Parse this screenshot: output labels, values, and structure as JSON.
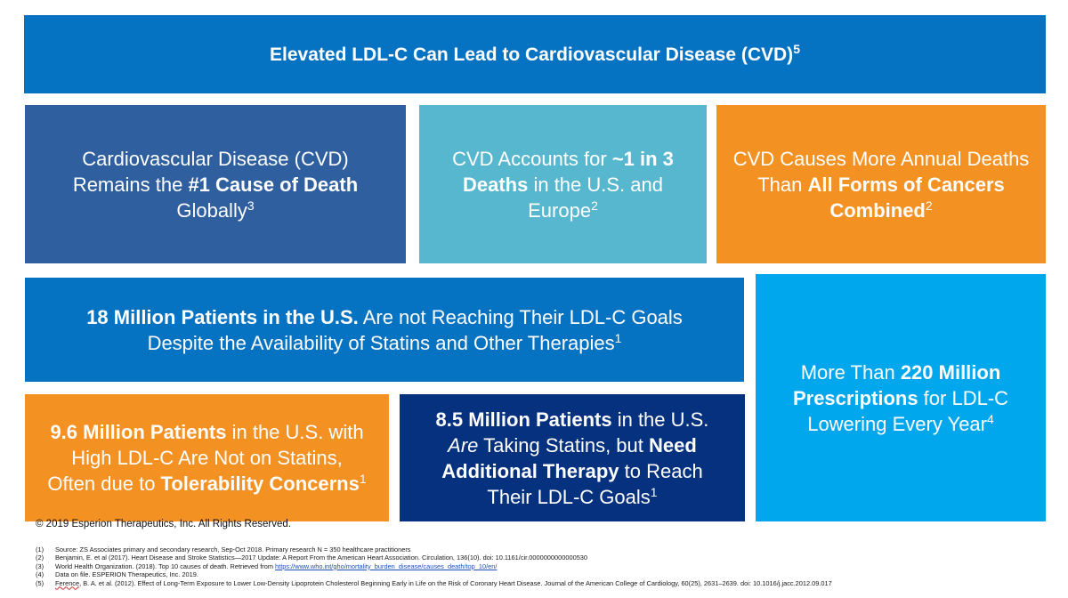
{
  "title": {
    "main": "Elevated LDL-C Can Lead to Cardiovascular Disease (CVD)",
    "sup": "5"
  },
  "boxes": {
    "cvd_global": {
      "line1": "Cardiovascular Disease (CVD)",
      "line2_pre": "Remains the ",
      "line2_bold": "#1 Cause of Death",
      "line3": "Globally",
      "sup": "3"
    },
    "cvd_1in3": {
      "line1_pre": "CVD Accounts for ",
      "line1_bold": "~1 in 3",
      "line2_bold": "Deaths",
      "line2_post": " in the U.S. and",
      "line3": "Europe",
      "sup": "2"
    },
    "cvd_cancers": {
      "line1": "CVD Causes More Annual Deaths",
      "line2_pre": "Than ",
      "line2_bold": "All Forms of Cancers",
      "line3_bold": "Combined",
      "sup": "2"
    },
    "patients_18m": {
      "line1_bold": "18 Million Patients in the U.S.",
      "line1_post": " Are not Reaching Their LDL-C Goals",
      "line2": "Despite the Availability of Statins and Other Therapies",
      "sup": "1"
    },
    "prescriptions_220m": {
      "line1_pre": "More Than ",
      "line1_bold": "220 Million",
      "line2_bold": "Prescriptions",
      "line2_post": " for LDL-C",
      "line3": "Lowering Every Year",
      "sup": "4"
    },
    "patients_9_6m": {
      "line1_bold": "9.6 Million Patients",
      "line1_post": " in the U.S. with",
      "line2": "High LDL-C Are Not on Statins,",
      "line3_pre": "Often due to ",
      "line3_bold": "Tolerability Concerns",
      "sup": "1"
    },
    "patients_8_5m": {
      "line1_bold": "8.5 Million Patients",
      "line1_post": " in the U.S.",
      "line2_italic": "Are",
      "line2_mid": " Taking Statins, but ",
      "line2_bold": "Need",
      "line3_bold": "Additional Therapy",
      "line3_post": " to Reach",
      "line4": "Their LDL-C Goals",
      "sup": "1"
    }
  },
  "copyright": "© 2019 Esperion Therapeutics, Inc. All Rights Reserved.",
  "footnotes": [
    {
      "num": "(1)",
      "text": "Source: ZS Associates primary and secondary research, Sep-Oct 2018. Primary research N = 350 healthcare practitioners"
    },
    {
      "num": "(2)",
      "text": "Benjamin, E. et al (2017). Heart Disease and Stroke Statistics—2017 Update: A Report From the American Heart Association. Circulation, 136(10). doi: 10.1161/cir.0000000000000530"
    },
    {
      "num": "(3)",
      "text": "World Health Organization. (2018). Top 10 causes of death. Retrieved from ",
      "link": "https://www.who.int/gho/mortality_burden_disease/causes_death/top_10/en/"
    },
    {
      "num": "(4)",
      "text": "Data on file. ESPERION Therapeutics, Inc. 2019."
    },
    {
      "num": "(5)",
      "lead": "Ference",
      "text": ", B. A. et al. (2012). Effect of Long-Term Exposure to Lower Low-Density Lipoprotein Cholesterol Beginning Early in Life on the Risk of Coronary Heart Disease. Journal of the American College of Cardiology, 60(25), 2631–2639. doi: 10.1016/j.jacc.2012.09.017"
    }
  ]
}
